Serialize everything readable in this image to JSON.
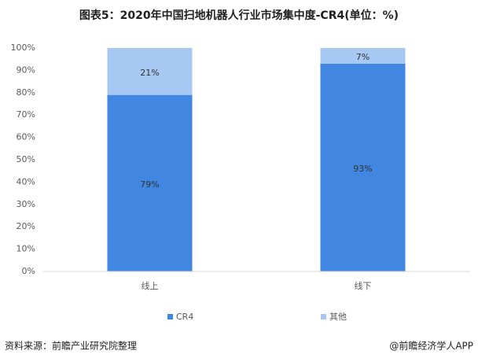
{
  "chart_data": {
    "type": "stacked_bar",
    "title": "图表5：2020年中国扫地机器人行业市场集中度-CR4(单位：%)",
    "categories": [
      "线上",
      "线下"
    ],
    "series": [
      {
        "name": "CR4",
        "color": "#4186e0",
        "values": [
          79,
          93
        ],
        "value_labels": [
          "79%",
          "93%"
        ]
      },
      {
        "name": "其他",
        "color": "#a6c8f2",
        "values": [
          21,
          7
        ],
        "value_labels": [
          "21%",
          "7%"
        ]
      }
    ],
    "ylim": [
      0,
      100
    ],
    "yticks": [
      {
        "value": 0,
        "label": "0%"
      },
      {
        "value": 10,
        "label": "10%"
      },
      {
        "value": 20,
        "label": "20%"
      },
      {
        "value": 30,
        "label": "30%"
      },
      {
        "value": 40,
        "label": "40%"
      },
      {
        "value": 50,
        "label": "50%"
      },
      {
        "value": 60,
        "label": "60%"
      },
      {
        "value": 70,
        "label": "70%"
      },
      {
        "value": 80,
        "label": "80%"
      },
      {
        "value": 90,
        "label": "90%"
      },
      {
        "value": 100,
        "label": "100%"
      }
    ],
    "legend": "bottom",
    "source": "资料来源：前瞻产业研究院整理",
    "credit": "@前瞻经济学人APP"
  }
}
